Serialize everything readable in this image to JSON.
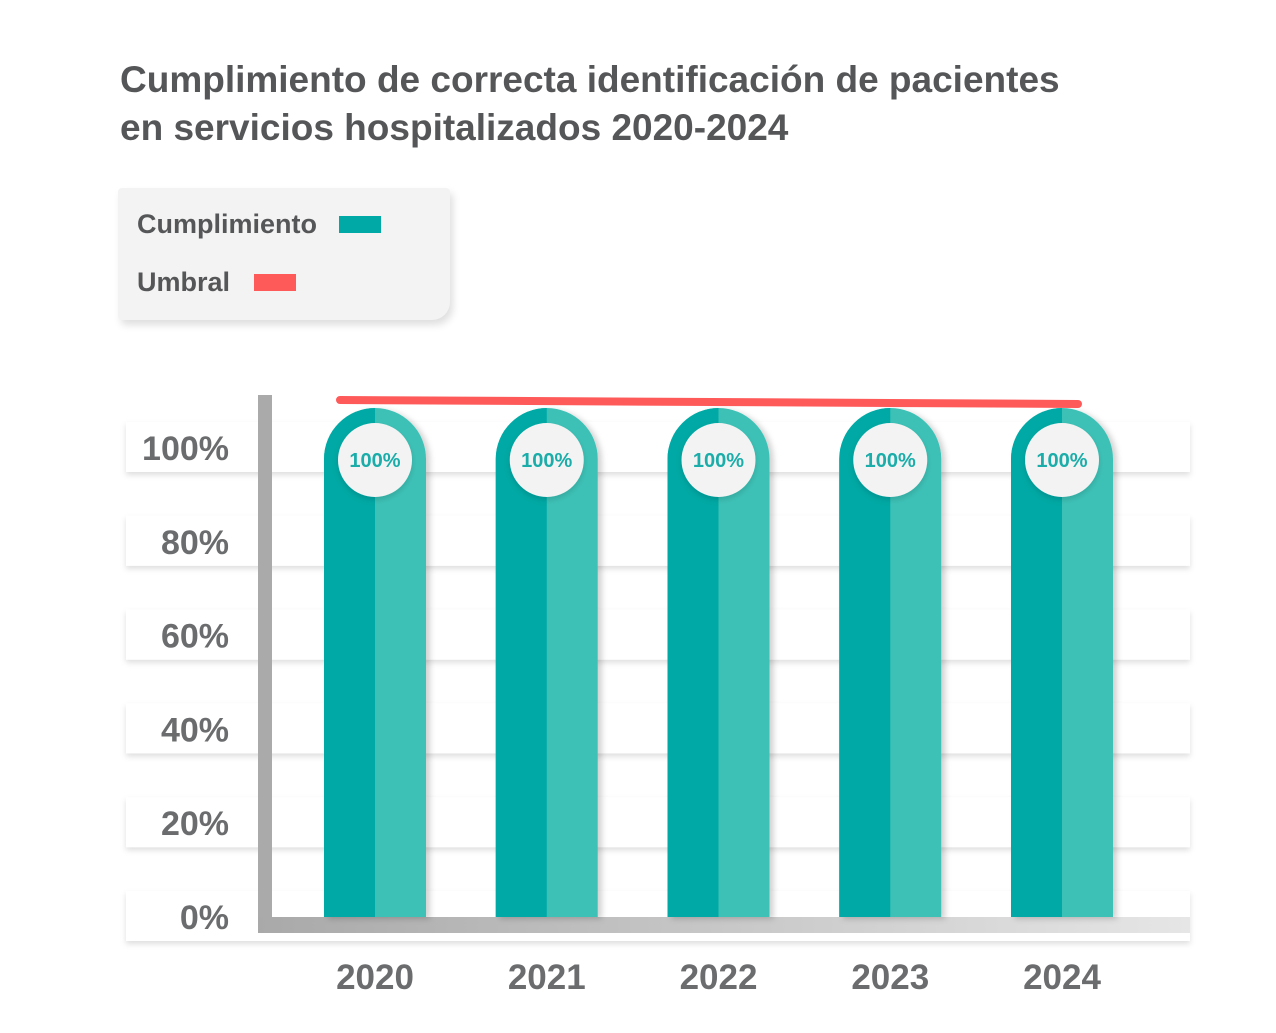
{
  "colors": {
    "bar_dark": "#00a9a5",
    "bar_light": "#3dc1b6",
    "threshold": "#ff5a5a",
    "axis": "#aaaaaa",
    "text": "#555658",
    "tick_text": "#6b6c6e",
    "label_text": "#1aada9"
  },
  "legend": {
    "items": [
      {
        "label": "Cumplimiento",
        "color": "#00a9a5"
      },
      {
        "label": "Umbral",
        "color": "#ff5a5a"
      }
    ]
  },
  "chart_data": {
    "type": "bar",
    "title": "Cumplimiento de correcta identificación de pacientes en servicios hospitalizados 2020-2024",
    "title_lines": [
      "Cumplimiento de correcta identificación de pacientes",
      "en servicios hospitalizados 2020-2024"
    ],
    "categories": [
      "2020",
      "2021",
      "2022",
      "2023",
      "2024"
    ],
    "series": [
      {
        "name": "Cumplimiento",
        "values": [
          100,
          100,
          100,
          100,
          100
        ],
        "color": "#00a9a5"
      }
    ],
    "threshold": {
      "name": "Umbral",
      "color": "#ff5a5a"
    },
    "data_labels": [
      "100%",
      "100%",
      "100%",
      "100%",
      "100%"
    ],
    "y_ticks": [
      0,
      20,
      40,
      60,
      80,
      100
    ],
    "y_tick_labels": [
      "0%",
      "20%",
      "40%",
      "60%",
      "80%",
      "100%"
    ],
    "ylim": [
      0,
      100
    ],
    "grid": true,
    "legend_position": "top-left",
    "xlabel": "",
    "ylabel": ""
  }
}
